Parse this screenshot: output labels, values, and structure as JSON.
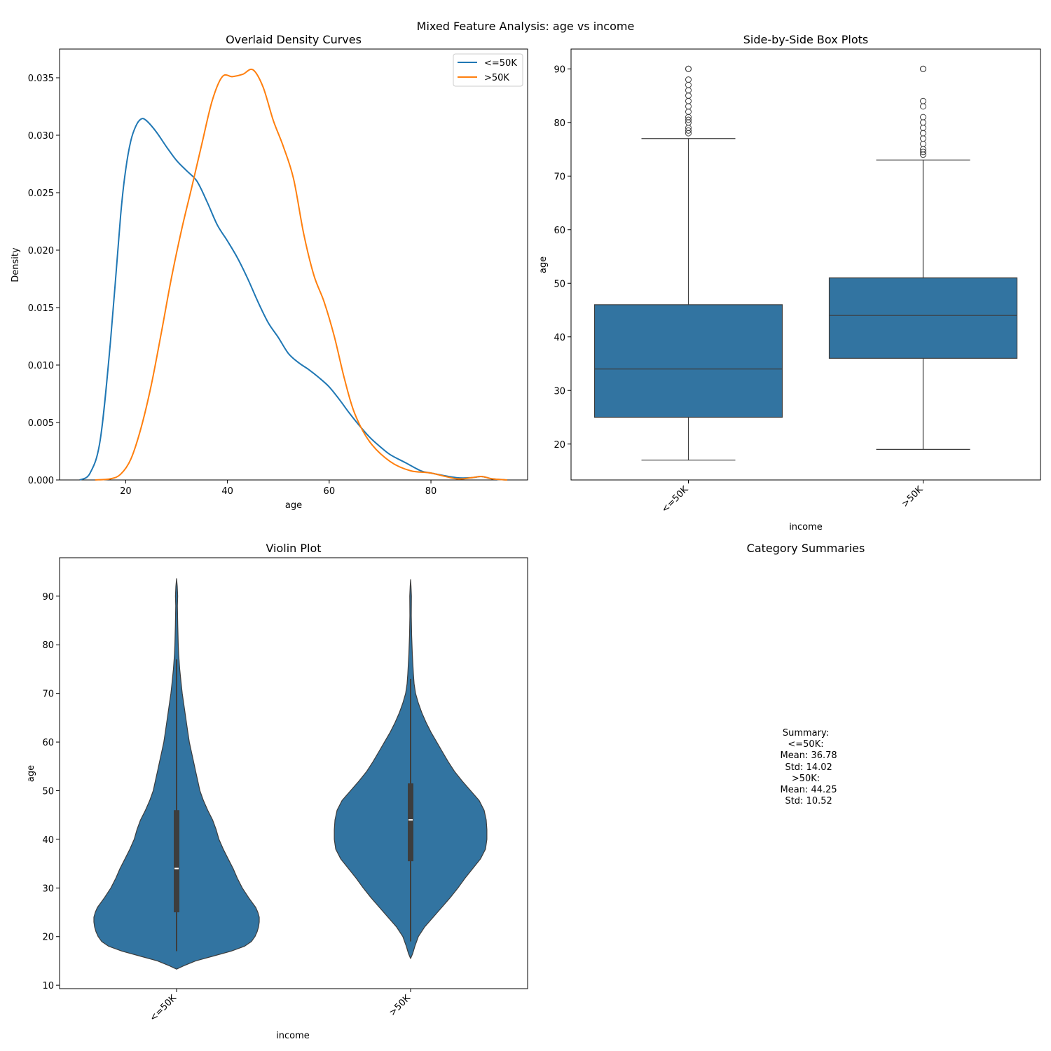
{
  "figure": {
    "suptitle": "Mixed Feature Analysis: age vs income"
  },
  "chart_data": [
    {
      "type": "line",
      "title": "Overlaid Density Curves",
      "xlabel": "age",
      "ylabel": "Density",
      "xlim": [
        7,
        99
      ],
      "ylim": [
        0,
        0.0375
      ],
      "xticks": [
        20,
        40,
        60,
        80
      ],
      "yticks": [
        0.0,
        0.005,
        0.01,
        0.015,
        0.02,
        0.025,
        0.03,
        0.035
      ],
      "ytick_labels": [
        "0.000",
        "0.005",
        "0.010",
        "0.015",
        "0.020",
        "0.025",
        "0.030",
        "0.035"
      ],
      "legend_position": "upper right",
      "series": [
        {
          "name": "<=50K",
          "color": "#1f77b4",
          "x": [
            11,
            13,
            15,
            17,
            19,
            20,
            21,
            22,
            23,
            24,
            26,
            28,
            30,
            32,
            34,
            36,
            38,
            40,
            42,
            44,
            46,
            48,
            50,
            52,
            54,
            56,
            58,
            60,
            62,
            64,
            66,
            68,
            70,
            72,
            75,
            78,
            80,
            85,
            88,
            90,
            92,
            95
          ],
          "y": [
            0.0,
            0.0006,
            0.0035,
            0.012,
            0.023,
            0.027,
            0.0295,
            0.0308,
            0.0314,
            0.0313,
            0.0303,
            0.029,
            0.0278,
            0.0269,
            0.026,
            0.0242,
            0.0222,
            0.0208,
            0.0193,
            0.0175,
            0.0155,
            0.0137,
            0.0124,
            0.011,
            0.0102,
            0.0096,
            0.0089,
            0.0081,
            0.007,
            0.0058,
            0.0047,
            0.0037,
            0.0029,
            0.0022,
            0.0015,
            0.0008,
            0.0006,
            0.0002,
            0.0002,
            0.0003,
            0.0001,
            0.0
          ]
        },
        {
          "name": ">50K",
          "color": "#ff7f0e",
          "x": [
            14,
            17,
            19,
            21,
            23,
            25,
            27,
            29,
            31,
            33,
            35,
            37,
            39,
            41,
            43,
            45,
            47,
            49,
            51,
            53,
            55,
            57,
            59,
            61,
            63,
            65,
            68,
            72,
            76,
            80,
            85,
            88,
            90,
            92,
            95
          ],
          "y": [
            0.0,
            0.0001,
            0.0005,
            0.0018,
            0.0045,
            0.0082,
            0.0128,
            0.0176,
            0.0218,
            0.0255,
            0.0293,
            0.033,
            0.0351,
            0.0351,
            0.0353,
            0.0357,
            0.0342,
            0.0313,
            0.029,
            0.0262,
            0.0214,
            0.0178,
            0.0155,
            0.0125,
            0.0088,
            0.0058,
            0.0033,
            0.0016,
            0.0008,
            0.0006,
            0.0001,
            0.0002,
            0.0003,
            0.0001,
            0.0
          ]
        }
      ]
    },
    {
      "type": "box",
      "title": "Side-by-Side Box Plots",
      "xlabel": "income",
      "ylabel": "age",
      "categories": [
        "<=50K",
        ">50K"
      ],
      "ylim": [
        13.3,
        93.7
      ],
      "yticks": [
        20,
        30,
        40,
        50,
        60,
        70,
        80,
        90
      ],
      "color": "#3274a1",
      "boxes": [
        {
          "whisker_low": 17,
          "q1": 25,
          "median": 34,
          "q3": 46,
          "whisker_high": 77,
          "outliers": [
            78,
            78.5,
            79,
            80,
            80.5,
            81,
            82,
            83,
            84,
            85,
            86,
            87,
            88,
            90,
            90
          ]
        },
        {
          "whisker_low": 19,
          "q1": 36,
          "median": 44,
          "q3": 51,
          "whisker_high": 73,
          "outliers": [
            74,
            74.5,
            75,
            76,
            77,
            78,
            79,
            80,
            81,
            83,
            84,
            90,
            90
          ]
        }
      ]
    },
    {
      "type": "violin",
      "title": "Violin Plot",
      "xlabel": "income",
      "ylabel": "age",
      "categories": [
        "<=50K",
        ">50K"
      ],
      "ylim": [
        9.3,
        97.9
      ],
      "yticks": [
        10,
        20,
        30,
        40,
        50,
        60,
        70,
        80,
        90
      ],
      "color": "#3274a1",
      "violins": [
        {
          "ymin": 13.3,
          "ymax": 93.6,
          "q1": 25,
          "median": 34,
          "q3": 46,
          "whisker_low": 17,
          "whisker_high": 77,
          "profile": [
            [
              13.3,
              0.0
            ],
            [
              14,
              0.1
            ],
            [
              15,
              0.27
            ],
            [
              16,
              0.52
            ],
            [
              17,
              0.77
            ],
            [
              18,
              0.96
            ],
            [
              19,
              1.06
            ],
            [
              20,
              1.11
            ],
            [
              21,
              1.14
            ],
            [
              22,
              1.16
            ],
            [
              23,
              1.17
            ],
            [
              24,
              1.17
            ],
            [
              25,
              1.15
            ],
            [
              26,
              1.12
            ],
            [
              27,
              1.07
            ],
            [
              28,
              1.02
            ],
            [
              30,
              0.93
            ],
            [
              32,
              0.86
            ],
            [
              34,
              0.8
            ],
            [
              36,
              0.73
            ],
            [
              38,
              0.66
            ],
            [
              40,
              0.6
            ],
            [
              42,
              0.56
            ],
            [
              44,
              0.51
            ],
            [
              46,
              0.44
            ],
            [
              48,
              0.38
            ],
            [
              50,
              0.33
            ],
            [
              52,
              0.3
            ],
            [
              54,
              0.27
            ],
            [
              56,
              0.24
            ],
            [
              58,
              0.21
            ],
            [
              60,
              0.18
            ],
            [
              62,
              0.16
            ],
            [
              64,
              0.14
            ],
            [
              66,
              0.12
            ],
            [
              68,
              0.1
            ],
            [
              70,
              0.08
            ],
            [
              72,
              0.065
            ],
            [
              75,
              0.045
            ],
            [
              78,
              0.03
            ],
            [
              80,
              0.024
            ],
            [
              84,
              0.017
            ],
            [
              88,
              0.012
            ],
            [
              90,
              0.016
            ],
            [
              92,
              0.01
            ],
            [
              93.6,
              0.0
            ]
          ]
        },
        {
          "ymin": 15.5,
          "ymax": 93.4,
          "q1": 35.5,
          "median": 44,
          "q3": 51.5,
          "whisker_low": 19,
          "whisker_high": 73,
          "profile": [
            [
              15.5,
              0.0
            ],
            [
              16.5,
              0.03
            ],
            [
              18,
              0.06
            ],
            [
              20,
              0.11
            ],
            [
              22,
              0.2
            ],
            [
              24,
              0.32
            ],
            [
              26,
              0.44
            ],
            [
              28,
              0.56
            ],
            [
              30,
              0.67
            ],
            [
              32,
              0.77
            ],
            [
              34,
              0.88
            ],
            [
              36,
              0.99
            ],
            [
              38,
              1.06
            ],
            [
              40,
              1.08
            ],
            [
              42,
              1.08
            ],
            [
              44,
              1.07
            ],
            [
              46,
              1.04
            ],
            [
              48,
              0.97
            ],
            [
              50,
              0.85
            ],
            [
              52,
              0.73
            ],
            [
              54,
              0.62
            ],
            [
              56,
              0.53
            ],
            [
              58,
              0.45
            ],
            [
              60,
              0.37
            ],
            [
              62,
              0.29
            ],
            [
              64,
              0.22
            ],
            [
              66,
              0.16
            ],
            [
              68,
              0.11
            ],
            [
              70,
              0.07
            ],
            [
              72,
              0.05
            ],
            [
              74,
              0.04
            ],
            [
              78,
              0.025
            ],
            [
              82,
              0.015
            ],
            [
              86,
              0.01
            ],
            [
              90,
              0.012
            ],
            [
              92,
              0.006
            ],
            [
              93.4,
              0.0
            ]
          ]
        }
      ]
    }
  ],
  "summary_panel": {
    "title": "Category Summaries",
    "text": "Summary:\n<=50K:\n  Mean: 36.78\n  Std: 14.02\n>50K:\n  Mean: 44.25\n  Std: 10.52"
  }
}
